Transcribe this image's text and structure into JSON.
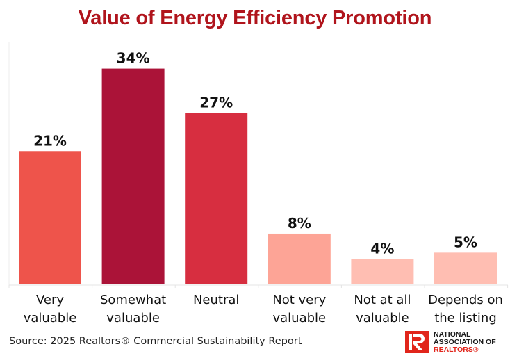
{
  "chart_data": {
    "type": "bar",
    "title": "Value of Energy Efficiency Promotion",
    "xlabel": "",
    "ylabel": "",
    "ylim": [
      0,
      36
    ],
    "grid": false,
    "legend": "none",
    "categories": [
      [
        "Very",
        "valuable"
      ],
      [
        "Somewhat",
        "valuable"
      ],
      [
        "Neutral"
      ],
      [
        "Not very",
        "valuable"
      ],
      [
        "Not at all",
        "valuable"
      ],
      [
        "Depends on",
        "the listing"
      ]
    ],
    "values": [
      21,
      34,
      27,
      8,
      4,
      5
    ],
    "value_labels": [
      "21%",
      "34%",
      "27%",
      "8%",
      "4%",
      "5%"
    ],
    "colors": [
      "#ee544b",
      "#ab1338",
      "#d72e40",
      "#fda496",
      "#ffbeb2",
      "#ffbeb2"
    ],
    "unit": "%"
  },
  "footer": {
    "source": "Source: 2025 Realtors® Commercial Sustainability Report"
  },
  "logo": {
    "line1": "NATIONAL",
    "line2": "ASSOCIATION OF",
    "line3": "REALTORS®",
    "brand_color": "#e1251b"
  }
}
